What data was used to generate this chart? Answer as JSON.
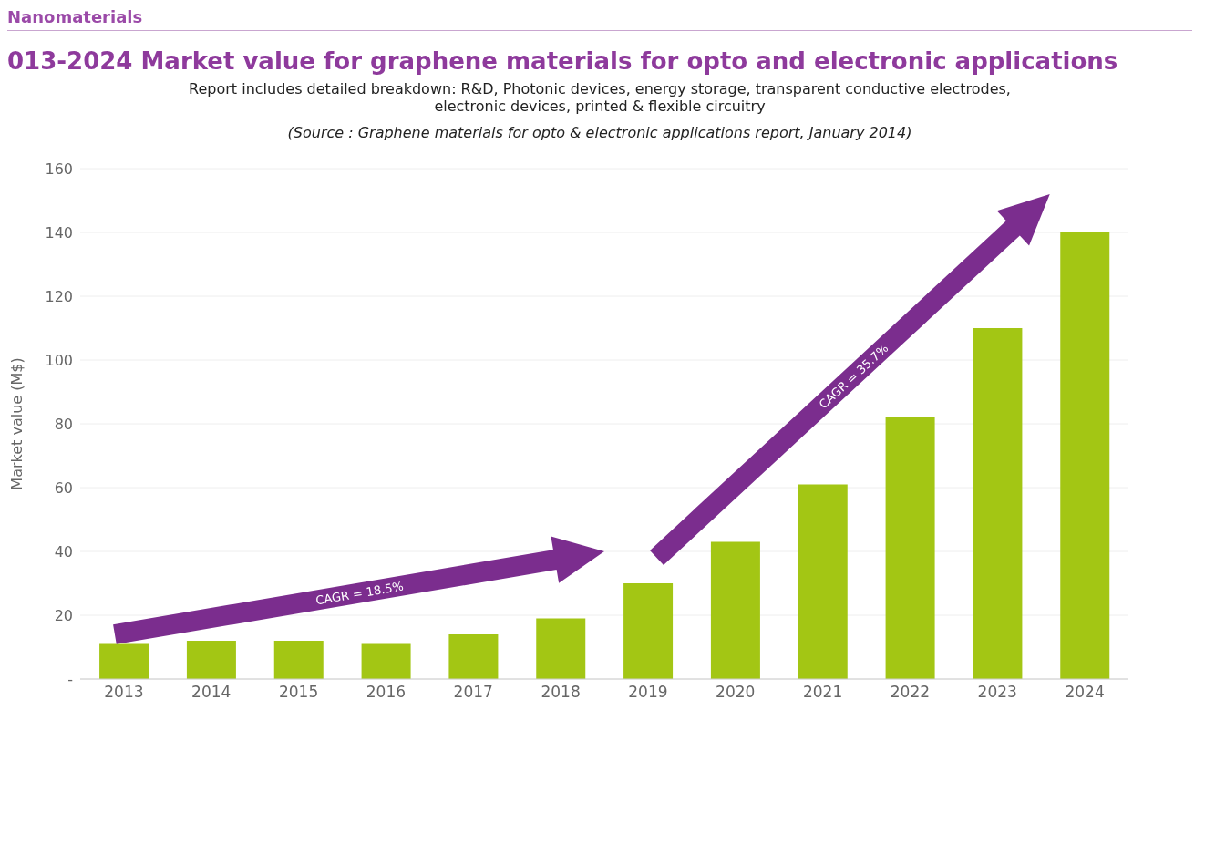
{
  "chart_data": {
    "type": "bar",
    "title": "013-2024 Market value for graphene materials for opto and electronic applications",
    "subtitle": "Report includes detailed breakdown: R&D, Photonic devices, energy storage, transparent conductive electrodes, electronic devices, printed & flexible circuitry",
    "annotations": [
      "Nanomaterials",
      "(Source : Graphene materials for opto & electronic applications report, January 2014)",
      "CAGR = 18.5%",
      "CAGR = 35.7%"
    ],
    "ylabel": "Market value (M$)",
    "categories": [
      "2013",
      "2014",
      "2015",
      "2016",
      "2017",
      "2018",
      "2019",
      "2020",
      "2021",
      "2022",
      "2023",
      "2024"
    ],
    "values": [
      11,
      12,
      12,
      11,
      14,
      19,
      30,
      43,
      61,
      82,
      110,
      140
    ],
    "color": "#a3c614",
    "ylim": [
      0,
      160
    ],
    "yticks": [
      {
        "value": 0,
        "label": "-"
      },
      20,
      40,
      60,
      80,
      100,
      120,
      140,
      160
    ],
    "grid": "y"
  }
}
